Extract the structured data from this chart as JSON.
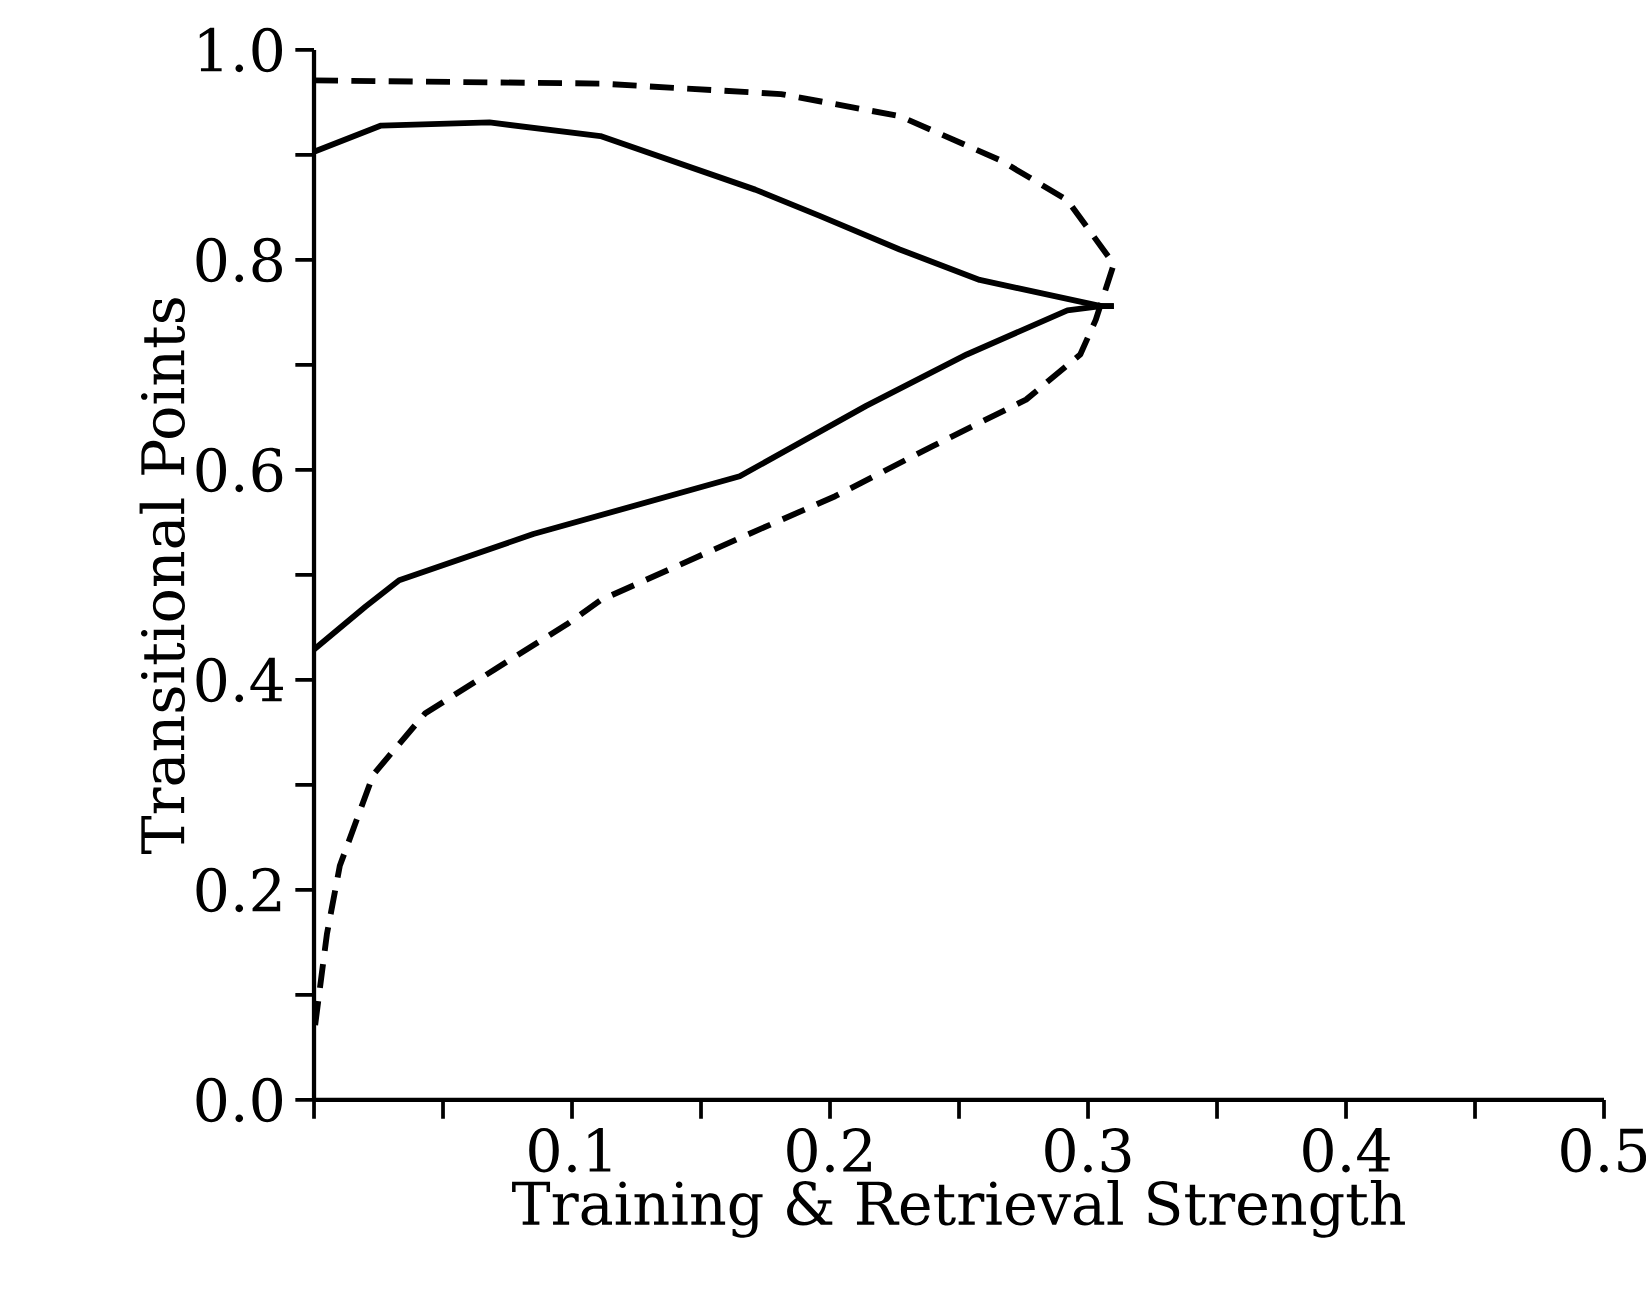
{
  "chart_data": {
    "type": "line",
    "xlabel": "Training & Retrieval Strength",
    "ylabel": "Transitional Points",
    "xlim": [
      0,
      0.5
    ],
    "ylim": [
      0,
      1
    ],
    "xticks": [
      {
        "value": 0,
        "label": null
      },
      {
        "value": 0.05,
        "label": null
      },
      0.1,
      {
        "value": 0.15,
        "label": null
      },
      0.2,
      {
        "value": 0.25,
        "label": null
      },
      0.3,
      {
        "value": 0.35,
        "label": null
      },
      0.4,
      {
        "value": 0.45,
        "label": null
      },
      0.5
    ],
    "yticks": [
      {
        "value": 0,
        "label": "0.0"
      },
      {
        "value": 0.1,
        "label": null
      },
      0.2,
      {
        "value": 0.3,
        "label": null
      },
      0.4,
      {
        "value": 0.5,
        "label": null
      },
      0.6,
      {
        "value": 0.7,
        "label": null
      },
      0.8,
      {
        "value": 0.9,
        "label": null
      },
      {
        "value": 1,
        "label": "1.0"
      }
    ],
    "series": [
      {
        "color": "#000000",
        "line_style": "solid",
        "x": [
          0,
          0.026,
          0.068,
          0.111,
          0.171,
          0.196,
          0.227,
          0.258,
          0.305,
          0.31
        ],
        "values": [
          0.903,
          0.928,
          0.931,
          0.918,
          0.867,
          0.842,
          0.81,
          0.781,
          0.756,
          0.756
        ]
      },
      {
        "color": "#000000",
        "line_style": "solid",
        "x": [
          0,
          0.02,
          0.033,
          0.085,
          0.165,
          0.214,
          0.253,
          0.292,
          0.305,
          0.31
        ],
        "values": [
          0.429,
          0.47,
          0.495,
          0.539,
          0.594,
          0.661,
          0.71,
          0.752,
          0.756,
          0.756
        ]
      },
      {
        "color": "#000000",
        "line_style": "dashed",
        "x": [
          0,
          0.111,
          0.181,
          0.227,
          0.266,
          0.292,
          0.31,
          0.303,
          0.297,
          0.276,
          0.24,
          0.202,
          0.163,
          0.111,
          0.098,
          0.07,
          0.043,
          0.023,
          0.01,
          0.005,
          0
        ],
        "values": [
          0.971,
          0.968,
          0.958,
          0.937,
          0.895,
          0.857,
          0.796,
          0.743,
          0.71,
          0.667,
          0.623,
          0.575,
          0.533,
          0.476,
          0.453,
          0.41,
          0.368,
          0.31,
          0.223,
          0.158,
          0.063
        ]
      }
    ]
  }
}
